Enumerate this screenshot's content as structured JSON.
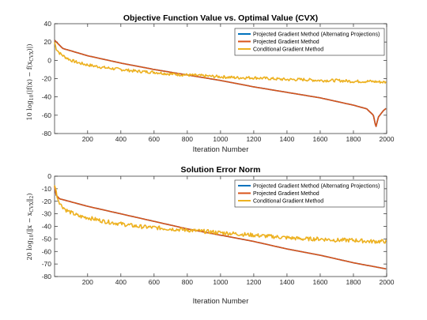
{
  "chart_data": [
    {
      "type": "line",
      "title": "Objective Function Value vs. Optimal Value (CVX)",
      "xlabel": "Iteration Number",
      "ylabel": "10 log10(|f(x) − f(xCVX)|)",
      "xlim": [
        1,
        2000
      ],
      "ylim": [
        -80,
        40
      ],
      "xticks": [
        200,
        400,
        600,
        800,
        1000,
        1200,
        1400,
        1600,
        1800,
        2000
      ],
      "yticks": [
        -80,
        -60,
        -40,
        -20,
        0,
        20,
        40
      ],
      "grid": false,
      "legend_position": "top-right",
      "series": [
        {
          "name": "Projected Gradient Method (Alternating Projections)",
          "color": "#0072BD",
          "x": [
            1,
            50,
            200,
            400,
            600,
            800,
            1000,
            1200,
            1400,
            1600,
            1800,
            1880,
            1920,
            1935,
            1950,
            1980,
            2000
          ],
          "y": [
            22,
            13,
            5,
            -3,
            -10,
            -16,
            -22,
            -29,
            -35,
            -41,
            -49,
            -53,
            -60,
            -73,
            -62,
            -55,
            -52
          ]
        },
        {
          "name": "Projected Gradient Method",
          "color": "#D95319",
          "x": [
            1,
            50,
            200,
            400,
            600,
            800,
            1000,
            1200,
            1400,
            1600,
            1800,
            1880,
            1920,
            1935,
            1950,
            1980,
            2000
          ],
          "y": [
            22,
            13,
            5,
            -3,
            -10,
            -16,
            -22,
            -29,
            -35,
            -41,
            -49,
            -53,
            -60,
            -73,
            -62,
            -55,
            -52
          ]
        },
        {
          "name": "Conditional Gradient Method",
          "color": "#EDB120",
          "x": [
            1,
            10,
            30,
            60,
            100,
            150,
            200,
            300,
            400,
            500,
            600,
            700,
            800,
            900,
            1000,
            1100,
            1200,
            1300,
            1400,
            1500,
            1600,
            1700,
            1800,
            1900,
            2000
          ],
          "y": [
            20,
            13,
            8,
            4,
            0,
            -3,
            -5,
            -8,
            -10,
            -12,
            -13,
            -15,
            -16,
            -17,
            -18,
            -19,
            -19,
            -20,
            -21,
            -21,
            -22,
            -22,
            -23,
            -23,
            -24
          ]
        }
      ]
    },
    {
      "type": "line",
      "title": "Solution Error Norm",
      "xlabel": "Iteration Number",
      "ylabel": "20 log10(‖x − xCVX‖2)",
      "xlim": [
        1,
        2000
      ],
      "ylim": [
        -80,
        0
      ],
      "xticks": [
        200,
        400,
        600,
        800,
        1000,
        1200,
        1400,
        1600,
        1800,
        2000
      ],
      "yticks": [
        -80,
        -70,
        -60,
        -50,
        -40,
        -30,
        -20,
        -10,
        0
      ],
      "grid": false,
      "legend_position": "top-right",
      "series": [
        {
          "name": "Projected Gradient Method (Alternating Projections)",
          "color": "#0072BD",
          "x": [
            1,
            10,
            30,
            60,
            200,
            400,
            600,
            800,
            1000,
            1200,
            1400,
            1600,
            1800,
            2000
          ],
          "y": [
            -8,
            -15,
            -18,
            -19,
            -24,
            -30,
            -36,
            -42,
            -47,
            -52,
            -58,
            -63,
            -69,
            -74
          ]
        },
        {
          "name": "Projected Gradient Method",
          "color": "#D95319",
          "x": [
            1,
            10,
            30,
            60,
            200,
            400,
            600,
            800,
            1000,
            1200,
            1400,
            1600,
            1800,
            2000
          ],
          "y": [
            -8,
            -15,
            -18,
            -19,
            -24,
            -30,
            -36,
            -42,
            -47,
            -52,
            -58,
            -63,
            -69,
            -74
          ]
        },
        {
          "name": "Conditional Gradient Method",
          "color": "#EDB120",
          "x": [
            1,
            10,
            20,
            40,
            70,
            100,
            150,
            200,
            300,
            400,
            500,
            600,
            700,
            800,
            900,
            1000,
            1100,
            1200,
            1300,
            1400,
            1500,
            1600,
            1700,
            1800,
            1900,
            2000
          ],
          "y": [
            -6,
            -12,
            -18,
            -23,
            -27,
            -29,
            -32,
            -33,
            -36,
            -38,
            -40,
            -41,
            -42,
            -43,
            -44,
            -45,
            -46,
            -47,
            -48,
            -49,
            -50,
            -50,
            -51,
            -51,
            -52,
            -52
          ]
        }
      ]
    }
  ]
}
